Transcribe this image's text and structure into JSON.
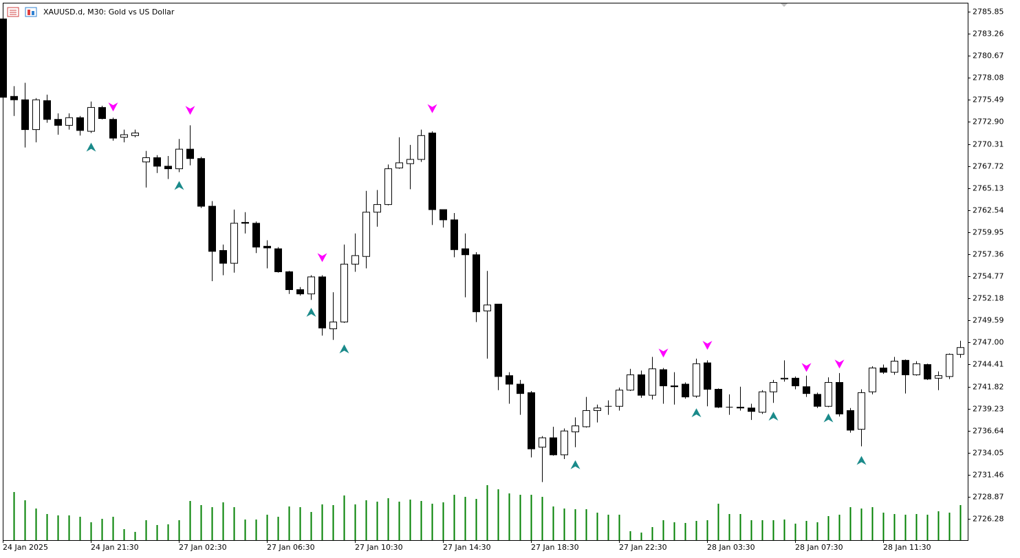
{
  "chart_data": {
    "type": "candlestick",
    "title": "XAUUSD.d, M30:  Gold vs US Dollar",
    "categories": [
      "24 Jan 2025",
      null,
      null,
      null,
      null,
      null,
      null,
      null,
      "24 Jan 21:30",
      null,
      null,
      null,
      null,
      null,
      null,
      null,
      "27 Jan 02:30",
      null,
      null,
      null,
      null,
      null,
      null,
      null,
      "27 Jan 06:30",
      null,
      null,
      null,
      null,
      null,
      null,
      null,
      "27 Jan 10:30",
      null,
      null,
      null,
      null,
      null,
      null,
      null,
      "27 Jan 14:30",
      null,
      null,
      null,
      null,
      null,
      null,
      null,
      "27 Jan 18:30",
      null,
      null,
      null,
      null,
      null,
      null,
      null,
      "27 Jan 22:30",
      null,
      null,
      null,
      null,
      null,
      null,
      null,
      "28 Jan 03:30",
      null,
      null,
      null,
      null,
      null,
      null,
      null,
      "28 Jan 07:30",
      null,
      null,
      null,
      null,
      null,
      null,
      null,
      "28 Jan 11:30",
      null,
      null,
      null,
      null,
      null,
      null,
      null
    ],
    "open": [
      2785.0,
      2775.9,
      2775.5,
      2772.0,
      2775.4,
      2773.2,
      2772.5,
      2773.4,
      2771.8,
      2774.6,
      2773.2,
      2771.1,
      2771.3,
      2768.2,
      2768.7,
      2767.7,
      2767.4,
      2769.7,
      2768.6,
      2763.0,
      2757.8,
      2756.3,
      2761.1,
      2761.0,
      2758.3,
      2758.0,
      2755.3,
      2753.2,
      2752.7,
      2754.7,
      2748.6,
      2749.4,
      2756.2,
      2757.1,
      2762.3,
      2763.2,
      2767.5,
      2768.0,
      2768.5,
      2771.6,
      2762.6,
      2761.4,
      2758.0,
      2757.3,
      2750.7,
      2751.5,
      2743.1,
      2742.1,
      2741.1,
      2734.7,
      2735.8,
      2733.8,
      2736.5,
      2737.1,
      2739.0,
      2739.5,
      2739.5,
      2741.4,
      2743.2,
      2740.8,
      2743.8,
      2741.9,
      2742.1,
      2740.7,
      2744.6,
      2741.5,
      2739.4,
      2739.4,
      2739.3,
      2738.8,
      2741.2,
      2742.7,
      2742.8,
      2741.8,
      2740.9,
      2739.5,
      2742.3,
      2739.0,
      2736.8,
      2741.2,
      2744.0,
      2743.5,
      2744.9,
      2743.2,
      2744.4,
      2742.8,
      2743.0,
      2745.6
    ],
    "high": [
      2785.3,
      2777.1,
      2777.5,
      2775.7,
      2776.1,
      2773.9,
      2773.9,
      2773.6,
      2775.3,
      2774.8,
      2773.4,
      2772.0,
      2772.0,
      2769.5,
      2769.0,
      2768.9,
      2770.9,
      2772.5,
      2768.8,
      2763.6,
      2758.5,
      2762.6,
      2762.3,
      2761.2,
      2759.0,
      2758.2,
      2755.4,
      2753.5,
      2754.9,
      2754.9,
      2752.9,
      2758.5,
      2759.8,
      2764.8,
      2764.9,
      2767.9,
      2771.1,
      2770.2,
      2772.0,
      2771.8,
      2762.6,
      2762.2,
      2759.8,
      2757.6,
      2755.4,
      2751.5,
      2743.5,
      2742.6,
      2741.3,
      2736.0,
      2737.1,
      2736.9,
      2738.2,
      2740.6,
      2739.7,
      2740.2,
      2741.7,
      2743.9,
      2743.7,
      2745.3,
      2744.0,
      2743.5,
      2742.3,
      2745.1,
      2744.9,
      2741.6,
      2740.9,
      2741.8,
      2739.8,
      2741.4,
      2742.6,
      2744.9,
      2743.0,
      2743.1,
      2741.1,
      2742.9,
      2743.4,
      2739.3,
      2741.5,
      2744.2,
      2744.4,
      2745.3,
      2745.0,
      2744.8,
      2744.5,
      2743.6,
      2745.7,
      2747.2
    ],
    "low": [
      2775.6,
      2773.6,
      2769.9,
      2770.5,
      2772.8,
      2771.4,
      2772.0,
      2771.3,
      2771.6,
      2773.2,
      2770.7,
      2770.5,
      2771.1,
      2765.2,
      2766.9,
      2766.2,
      2767.0,
      2767.8,
      2762.8,
      2754.2,
      2754.9,
      2755.2,
      2759.8,
      2757.5,
      2755.7,
      2755.2,
      2752.7,
      2752.5,
      2752.0,
      2747.8,
      2747.3,
      2749.3,
      2755.3,
      2755.7,
      2760.6,
      2763.1,
      2767.4,
      2765.0,
      2768.2,
      2760.8,
      2760.5,
      2757.0,
      2752.3,
      2749.4,
      2745.1,
      2741.4,
      2739.8,
      2738.5,
      2733.5,
      2730.6,
      2733.7,
      2733.3,
      2734.7,
      2737.0,
      2737.6,
      2738.5,
      2739.0,
      2741.3,
      2740.5,
      2740.3,
      2739.8,
      2739.7,
      2740.4,
      2740.5,
      2739.5,
      2739.3,
      2738.5,
      2739.0,
      2737.9,
      2738.6,
      2739.9,
      2742.4,
      2741.5,
      2740.6,
      2739.3,
      2739.4,
      2738.3,
      2736.4,
      2734.8,
      2740.9,
      2743.3,
      2743.2,
      2741.0,
      2743.1,
      2742.6,
      2741.4,
      2742.7,
      2745.2
    ],
    "close": [
      2775.8,
      2775.5,
      2772.0,
      2775.5,
      2773.2,
      2772.5,
      2773.4,
      2771.9,
      2774.6,
      2773.3,
      2771.0,
      2771.4,
      2771.6,
      2768.7,
      2767.7,
      2767.4,
      2769.7,
      2768.6,
      2763.0,
      2757.7,
      2756.3,
      2761.0,
      2761.0,
      2758.2,
      2758.1,
      2755.3,
      2753.2,
      2752.7,
      2754.7,
      2748.7,
      2749.4,
      2756.2,
      2757.2,
      2762.3,
      2763.2,
      2767.4,
      2768.1,
      2768.5,
      2771.3,
      2762.6,
      2761.4,
      2757.9,
      2757.3,
      2750.6,
      2751.4,
      2743.0,
      2742.1,
      2741.0,
      2734.5,
      2735.8,
      2733.8,
      2736.6,
      2737.2,
      2739.0,
      2739.3,
      2739.5,
      2741.4,
      2743.2,
      2740.8,
      2743.9,
      2741.9,
      2741.8,
      2740.6,
      2744.5,
      2741.5,
      2739.4,
      2739.4,
      2739.3,
      2738.9,
      2741.2,
      2742.3,
      2742.8,
      2741.9,
      2741.0,
      2739.5,
      2742.3,
      2738.6,
      2736.7,
      2741.1,
      2744.0,
      2743.5,
      2744.8,
      2743.2,
      2744.5,
      2742.7,
      2743.1,
      2745.6,
      2746.4
    ],
    "volume": {
      "color": "#008000",
      "values": [
        null,
        70,
        58,
        46,
        38,
        36,
        36,
        34,
        26,
        31,
        34,
        16,
        12,
        29,
        22,
        23,
        29,
        57,
        51,
        48,
        55,
        48,
        30,
        30,
        37,
        34,
        49,
        48,
        41,
        52,
        51,
        65,
        52,
        58,
        56,
        61,
        56,
        59,
        57,
        53,
        55,
        66,
        63,
        60,
        80,
        74,
        68,
        66,
        66,
        63,
        49,
        46,
        45,
        45,
        40,
        37,
        37,
        13,
        11,
        19,
        29,
        26,
        25,
        28,
        29,
        53,
        38,
        38,
        29,
        29,
        29,
        30,
        24,
        28,
        26,
        35,
        37,
        48,
        46,
        48,
        40,
        38,
        37,
        38,
        37,
        42,
        40,
        51
      ]
    },
    "up_arrows": {
      "color": "#1a8a8a",
      "values": [
        null,
        null,
        null,
        null,
        null,
        null,
        null,
        null,
        2769.9,
        null,
        null,
        null,
        null,
        null,
        null,
        null,
        2765.4,
        null,
        null,
        null,
        null,
        null,
        null,
        null,
        null,
        null,
        null,
        null,
        2750.5,
        null,
        null,
        2746.2,
        null,
        null,
        null,
        null,
        null,
        null,
        null,
        null,
        null,
        null,
        null,
        null,
        null,
        null,
        null,
        null,
        null,
        null,
        null,
        null,
        2732.6,
        null,
        null,
        null,
        null,
        null,
        null,
        null,
        null,
        null,
        null,
        2738.7,
        null,
        null,
        null,
        null,
        null,
        null,
        2738.3,
        null,
        null,
        null,
        null,
        2738.1,
        null,
        null,
        2733.1,
        null,
        null,
        null,
        null,
        null,
        null,
        null,
        null,
        null
      ]
    },
    "down_arrows": {
      "color": "#ff00ff",
      "values": [
        null,
        null,
        null,
        null,
        null,
        null,
        null,
        null,
        null,
        null,
        2774.7,
        null,
        null,
        null,
        null,
        null,
        null,
        2774.3,
        null,
        null,
        null,
        null,
        null,
        null,
        null,
        null,
        null,
        null,
        null,
        2757.0,
        null,
        null,
        null,
        null,
        null,
        null,
        null,
        null,
        null,
        2774.5,
        null,
        null,
        null,
        null,
        null,
        null,
        null,
        null,
        null,
        null,
        null,
        null,
        null,
        null,
        null,
        null,
        null,
        null,
        null,
        null,
        2745.8,
        null,
        null,
        null,
        2746.7,
        null,
        null,
        null,
        null,
        null,
        null,
        null,
        null,
        2744.1,
        null,
        null,
        2744.5,
        null,
        null,
        null,
        null,
        null,
        null,
        null,
        null,
        null,
        null,
        null
      ]
    },
    "bull_color": "#ffffff",
    "bear_color": "#000000",
    "ylim": [
      2723.78,
      2786.9
    ],
    "yticks": [
      2785.85,
      2783.26,
      2780.67,
      2778.08,
      2775.49,
      {
        "value": 2772.9,
        "label": "2772.90"
      },
      2770.31,
      2767.72,
      2765.13,
      2762.54,
      2759.95,
      2757.36,
      2754.77,
      2752.18,
      2749.59,
      {
        "value": 2747,
        "label": "2747.00"
      },
      2744.41,
      2741.82,
      2739.23,
      2736.64,
      2734.05,
      2731.46,
      2728.87,
      2726.28
    ]
  }
}
